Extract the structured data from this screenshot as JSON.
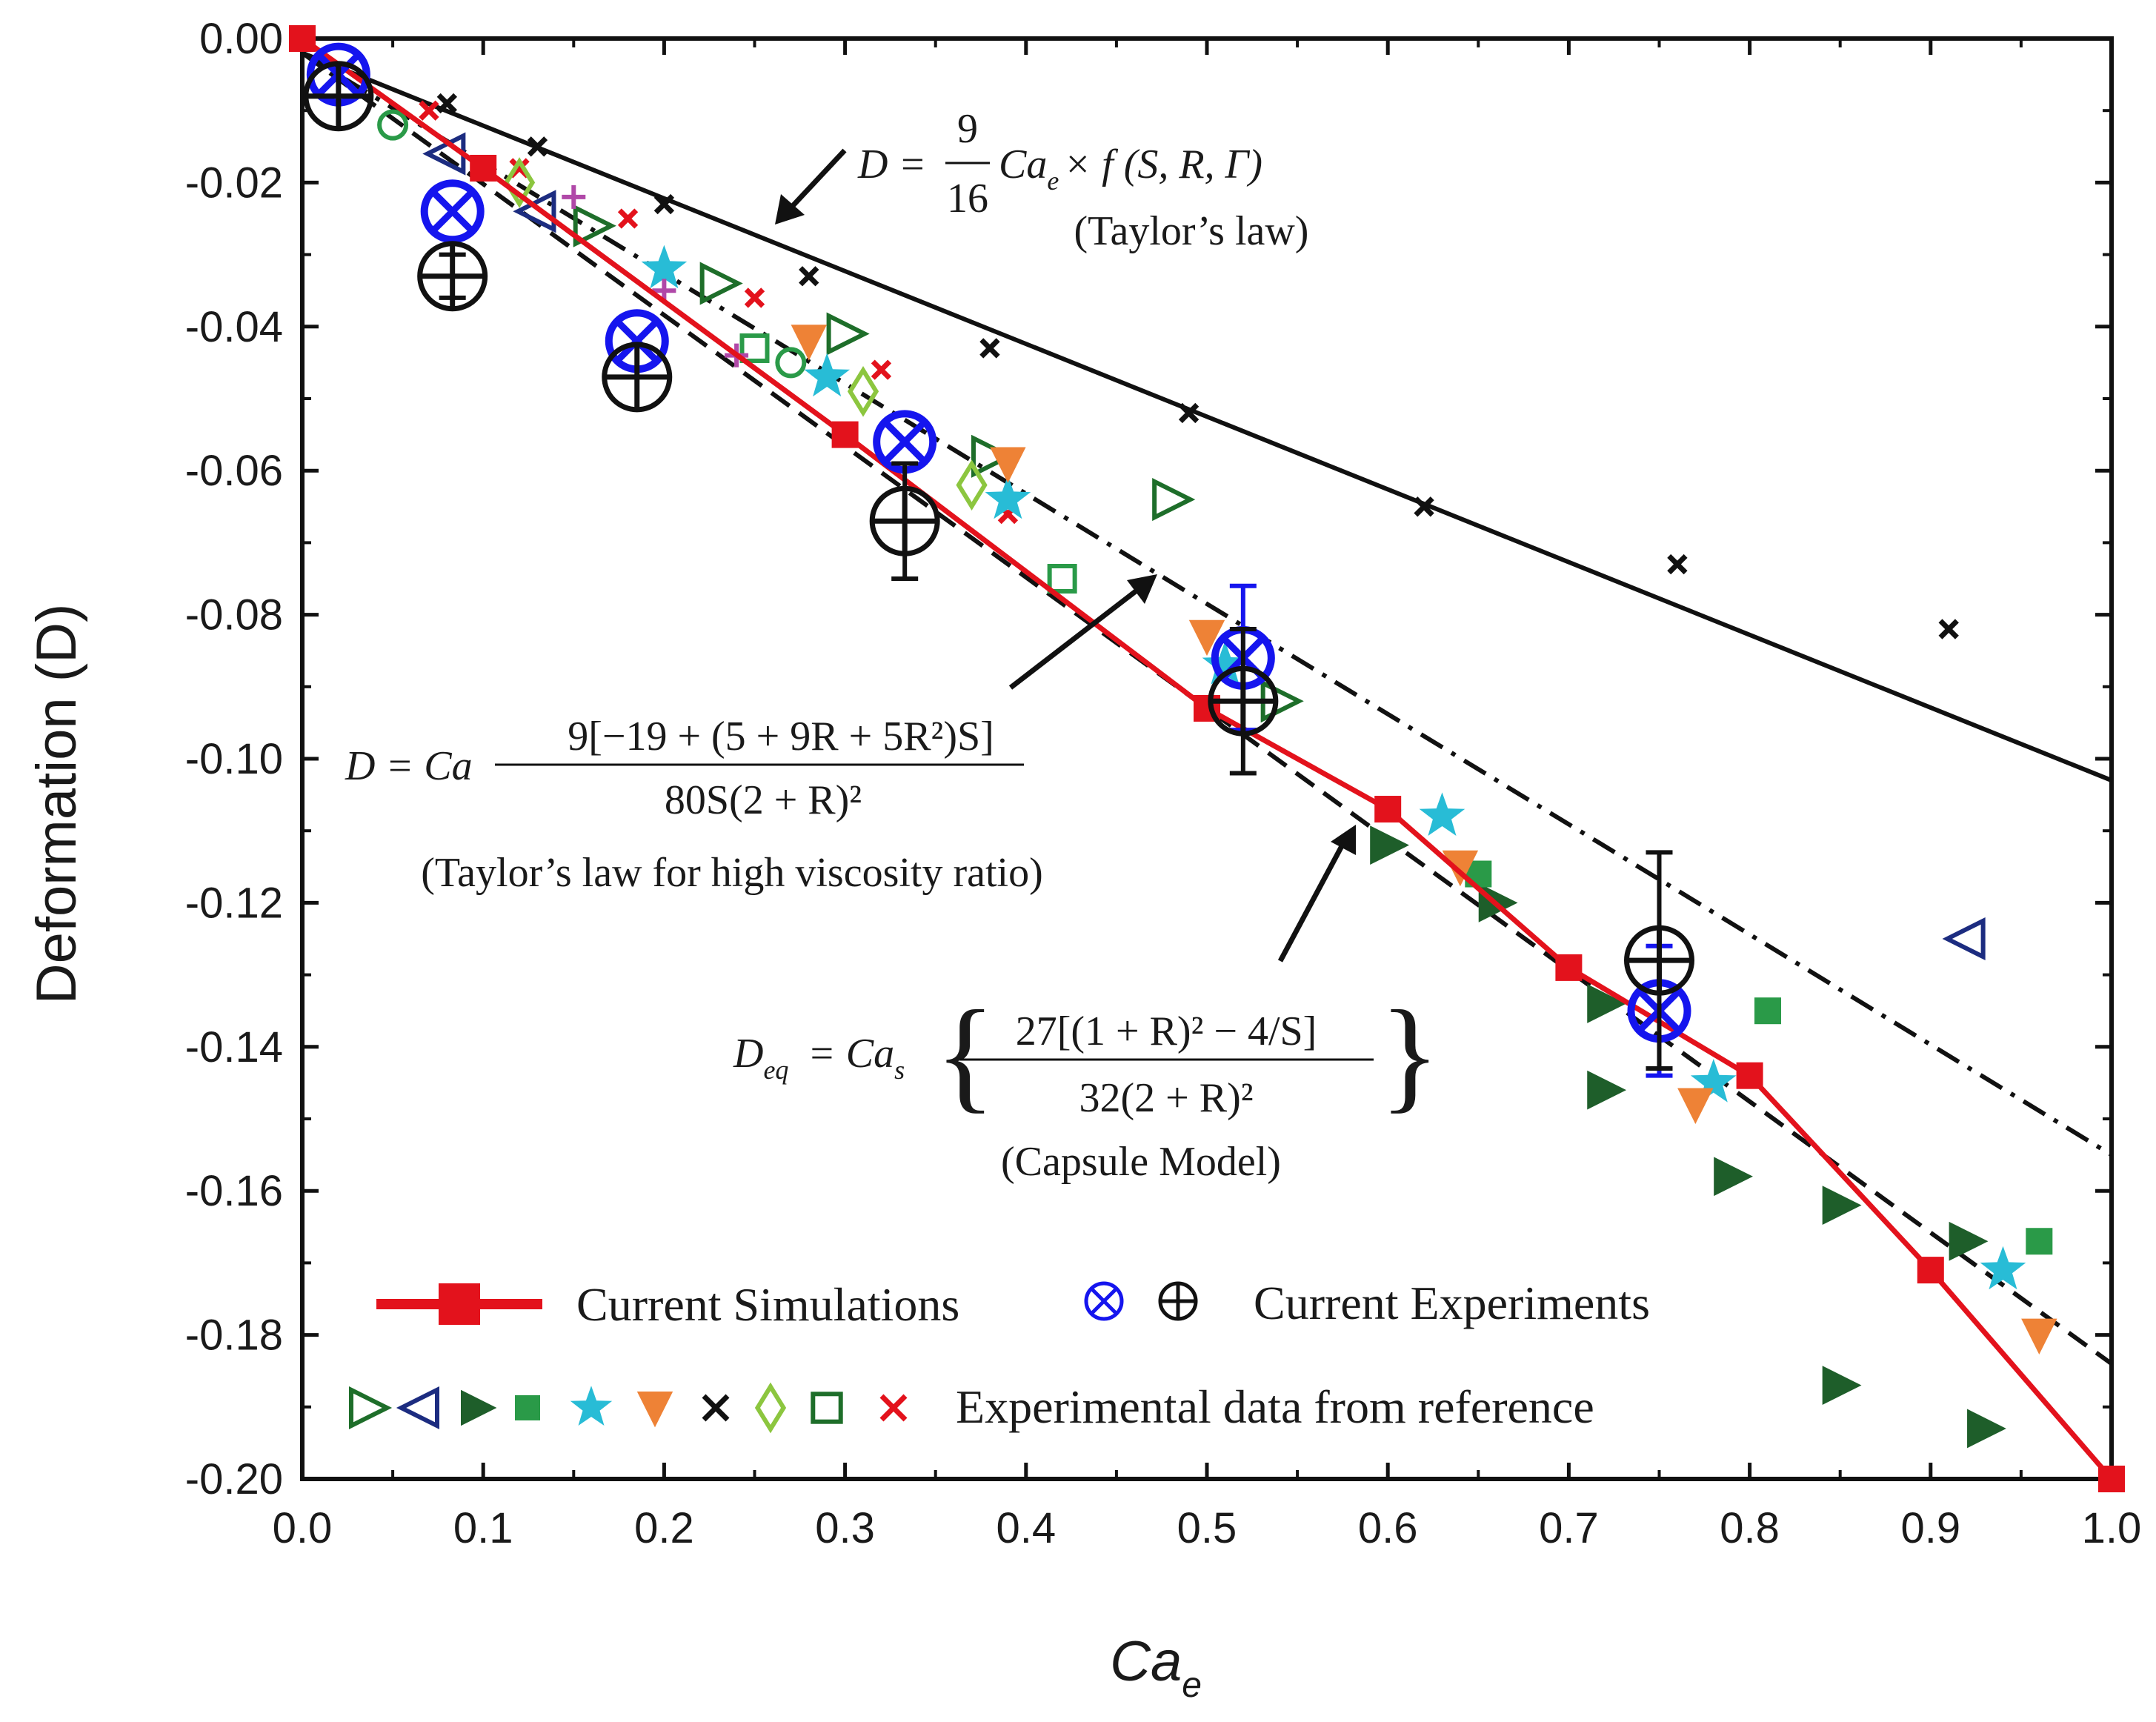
{
  "chart_data": {
    "type": "scatter",
    "title": "",
    "xlabel": "Ca",
    "xlabel_sub": "e",
    "ylabel": "Deformation (D)",
    "xlim": [
      0.0,
      1.0
    ],
    "ylim": [
      -0.2,
      0.0
    ],
    "x_ticks": [
      "0.0",
      "0.1",
      "0.2",
      "0.3",
      "0.4",
      "0.5",
      "0.6",
      "0.7",
      "0.8",
      "0.9",
      "1.0"
    ],
    "y_ticks": [
      "0.00",
      "-0.02",
      "-0.04",
      "-0.06",
      "-0.08",
      "-0.10",
      "-0.12",
      "-0.14",
      "-0.16",
      "-0.18",
      "-0.20"
    ],
    "colors": {
      "simulation": "#e3121c",
      "exp_blue": "#1515ee",
      "exp_black": "#111111",
      "dark_green": "#1e5e2a",
      "green": "#2a9a48",
      "navy": "#1c2c80",
      "cyan": "#28bcd6",
      "orange": "#ee8236",
      "lime": "#8cc63f",
      "purple": "#b048a8"
    },
    "lines": [
      {
        "name": "Taylor's law",
        "style": "solid",
        "color": "#111111",
        "x": [
          0.0,
          1.0
        ],
        "y": [
          -0.002,
          -0.103
        ]
      },
      {
        "name": "Taylor's law for high viscosity ratio",
        "style": "dash-dot",
        "color": "#111111",
        "x": [
          0.0,
          1.0
        ],
        "y": [
          -0.002,
          -0.155
        ]
      },
      {
        "name": "Capsule Model",
        "style": "dashed",
        "color": "#111111",
        "x": [
          0.0,
          1.0
        ],
        "y": [
          -0.002,
          -0.184
        ]
      }
    ],
    "series": [
      {
        "name": "Current Simulations",
        "marker": "square",
        "color": "#e3121c",
        "line": true,
        "x": [
          0.0,
          0.1,
          0.3,
          0.5,
          0.6,
          0.7,
          0.8,
          0.9,
          1.0
        ],
        "y": [
          0.0,
          -0.018,
          -0.055,
          -0.093,
          -0.107,
          -0.129,
          -0.144,
          -0.171,
          -0.2
        ]
      },
      {
        "name": "Current Experiments (otimes)",
        "marker": "otimes",
        "color": "#1515ee",
        "x": [
          0.02,
          0.083,
          0.185,
          0.333,
          0.52,
          0.75
        ],
        "y": [
          -0.005,
          -0.024,
          -0.042,
          -0.056,
          -0.086,
          -0.135
        ],
        "err": [
          0.0,
          0.0,
          0.0,
          0.0,
          0.01,
          0.009
        ]
      },
      {
        "name": "Current Experiments (oplus)",
        "marker": "oplus",
        "color": "#111111",
        "x": [
          0.02,
          0.083,
          0.185,
          0.333,
          0.52,
          0.75
        ],
        "y": [
          -0.008,
          -0.033,
          -0.047,
          -0.067,
          -0.092,
          -0.128
        ],
        "err": [
          0.0,
          0.003,
          0.0,
          0.008,
          0.01,
          0.015
        ]
      },
      {
        "name": "Reference: black x",
        "marker": "x",
        "color": "#111111",
        "x": [
          0.08,
          0.13,
          0.2,
          0.28,
          0.38,
          0.49,
          0.62,
          0.76,
          0.91
        ],
        "y": [
          -0.009,
          -0.015,
          -0.023,
          -0.033,
          -0.043,
          -0.052,
          -0.065,
          -0.073,
          -0.082
        ]
      },
      {
        "name": "Reference: red x",
        "marker": "x",
        "color": "#e3121c",
        "x": [
          0.07,
          0.12,
          0.18,
          0.25,
          0.32,
          0.39
        ],
        "y": [
          -0.01,
          -0.018,
          -0.025,
          -0.036,
          -0.046,
          -0.066
        ]
      },
      {
        "name": "Reference: open right triangle",
        "marker": "tri-right-open",
        "color": "#1e6e2a",
        "x": [
          0.16,
          0.23,
          0.3,
          0.38,
          0.48,
          0.54
        ],
        "y": [
          -0.026,
          -0.034,
          -0.041,
          -0.058,
          -0.064,
          -0.092
        ]
      },
      {
        "name": "Reference: open left triangle",
        "marker": "tri-left-open",
        "color": "#1c2c80",
        "x": [
          0.08,
          0.13,
          0.92
        ],
        "y": [
          -0.016,
          -0.024,
          -0.125
        ]
      },
      {
        "name": "Reference: filled right triangle",
        "marker": "tri-right",
        "color": "#1e5e2a",
        "x": [
          0.6,
          0.66,
          0.72,
          0.72,
          0.79,
          0.85,
          0.85,
          0.92,
          0.93
        ],
        "y": [
          -0.112,
          -0.12,
          -0.134,
          -0.146,
          -0.158,
          -0.162,
          -0.187,
          -0.167,
          -0.193
        ]
      },
      {
        "name": "Reference: filled square",
        "marker": "square",
        "color": "#2a9a48",
        "x": [
          0.65,
          0.81,
          0.96
        ],
        "y": [
          -0.116,
          -0.135,
          -0.167
        ]
      },
      {
        "name": "Reference: star",
        "marker": "star",
        "color": "#28bcd6",
        "x": [
          0.2,
          0.29,
          0.39,
          0.51,
          0.63,
          0.78,
          0.94
        ],
        "y": [
          -0.032,
          -0.047,
          -0.064,
          -0.087,
          -0.108,
          -0.145,
          -0.171
        ]
      },
      {
        "name": "Reference: down triangle",
        "marker": "tri-down",
        "color": "#ee8236",
        "x": [
          0.28,
          0.39,
          0.5,
          0.64,
          0.77,
          0.96
        ],
        "y": [
          -0.042,
          -0.059,
          -0.083,
          -0.115,
          -0.148,
          -0.18
        ]
      },
      {
        "name": "Reference: diamond",
        "marker": "diamond",
        "color": "#8cc63f",
        "x": [
          0.12,
          0.31,
          0.37
        ],
        "y": [
          -0.02,
          -0.049,
          -0.062
        ]
      },
      {
        "name": "Reference: open square",
        "marker": "square-open",
        "color": "#2a9a48",
        "x": [
          0.25,
          0.42
        ],
        "y": [
          -0.043,
          -0.075
        ]
      },
      {
        "name": "Reference: open circle",
        "marker": "circle-open",
        "color": "#2a9a48",
        "x": [
          0.05,
          0.27
        ],
        "y": [
          -0.012,
          -0.045
        ]
      },
      {
        "name": "Reference: plus",
        "marker": "plus",
        "color": "#b048a8",
        "x": [
          0.15,
          0.2,
          0.24
        ],
        "y": [
          -0.022,
          -0.035,
          -0.044
        ]
      }
    ],
    "annotations": {
      "taylor": {
        "lhs": "D =",
        "frac_num": "9",
        "frac_den": "16",
        "rhs_ca": "Ca",
        "rhs_sub": "e",
        "rhs_rest": "× f (S, R, Γ)",
        "caption": "(Taylor’s law)"
      },
      "high_visc": {
        "lhs": "D = Ca",
        "num": "9[−19 + (5 + 9R + 5R²)S]",
        "den": "80S(2 + R)²",
        "caption": "(Taylor’s law for high viscosity ratio)"
      },
      "capsule": {
        "lhs": "D",
        "lhs_sub": "eq",
        "eq": "= Ca",
        "eq_sub": "s",
        "num": "27[(1 + R)² − 4/S]",
        "den": "32(2 + R)²",
        "caption": "(Capsule Model)"
      }
    },
    "legend": {
      "placement": "bottom-left",
      "simulations": "Current Simulations",
      "experiments": "Current Experiments",
      "reference": "Experimental data from reference"
    }
  }
}
